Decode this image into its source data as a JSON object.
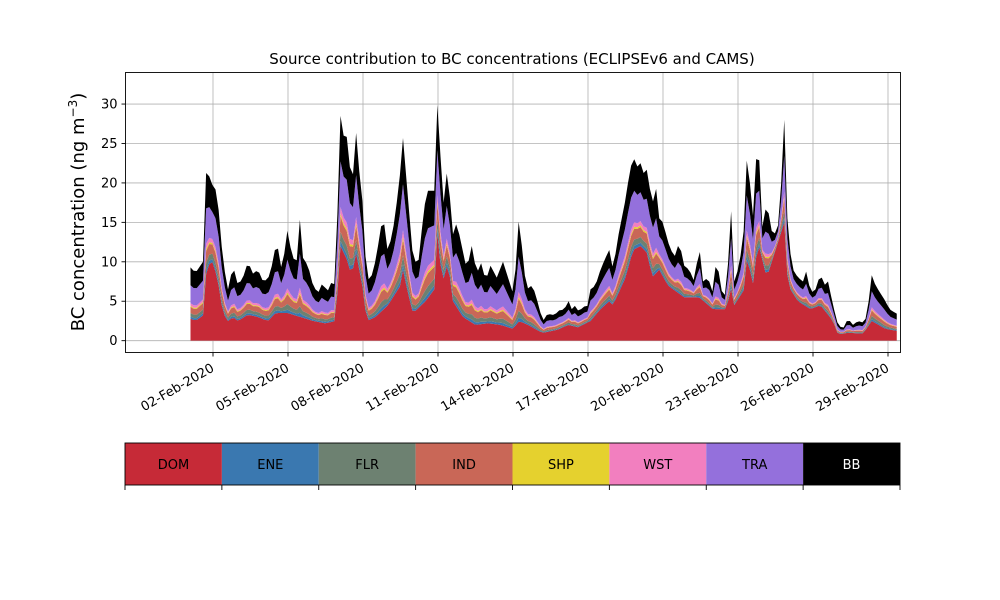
{
  "chart_data": {
    "type": "area",
    "title": "Source contribution to BC concentrations (ECLIPSEv6 and CAMS)",
    "ylabel": "BC concentration (ng m",
    "ylabel_superscript": "−3",
    "ylabel_suffix": ")",
    "ylim": [
      -1.5,
      34
    ],
    "yticks": [
      0,
      5,
      10,
      15,
      20,
      25,
      30
    ],
    "xlim_days": [
      -1.5,
      29.5
    ],
    "x_start": "01-Feb-2020",
    "x_end": "01-Mar-2020",
    "xticks": [
      {
        "day": 2,
        "label": "02-Feb-2020"
      },
      {
        "day": 5,
        "label": "05-Feb-2020"
      },
      {
        "day": 8,
        "label": "08-Feb-2020"
      },
      {
        "day": 11,
        "label": "11-Feb-2020"
      },
      {
        "day": 14,
        "label": "14-Feb-2020"
      },
      {
        "day": 17,
        "label": "17-Feb-2020"
      },
      {
        "day": 20,
        "label": "20-Feb-2020"
      },
      {
        "day": 23,
        "label": "23-Feb-2020"
      },
      {
        "day": 26,
        "label": "26-Feb-2020"
      },
      {
        "day": 29,
        "label": "29-Feb-2020"
      }
    ],
    "grid": true,
    "total_keypoints": [
      [
        1.1,
        9.3
      ],
      [
        1.3,
        8.6
      ],
      [
        1.6,
        10.0
      ],
      [
        1.75,
        23.5
      ],
      [
        1.9,
        19.5
      ],
      [
        2.05,
        20.0
      ],
      [
        2.2,
        17.5
      ],
      [
        2.4,
        10.0
      ],
      [
        2.6,
        6.5
      ],
      [
        2.8,
        9.5
      ],
      [
        3.0,
        7.0
      ],
      [
        3.2,
        8.0
      ],
      [
        3.4,
        10.0
      ],
      [
        3.6,
        8.5
      ],
      [
        3.8,
        9.0
      ],
      [
        4.0,
        7.5
      ],
      [
        4.2,
        7.8
      ],
      [
        4.4,
        10.0
      ],
      [
        4.55,
        13.0
      ],
      [
        4.7,
        9.0
      ],
      [
        4.85,
        11.0
      ],
      [
        5.0,
        14.5
      ],
      [
        5.15,
        10.5
      ],
      [
        5.35,
        10.2
      ],
      [
        5.45,
        16.3
      ],
      [
        5.6,
        10.5
      ],
      [
        5.8,
        9.5
      ],
      [
        6.0,
        7.0
      ],
      [
        6.2,
        6.0
      ],
      [
        6.4,
        7.5
      ],
      [
        6.55,
        6.0
      ],
      [
        6.75,
        7.5
      ],
      [
        6.9,
        7.0
      ],
      [
        7.0,
        19.0
      ],
      [
        7.1,
        28.5
      ],
      [
        7.25,
        25.5
      ],
      [
        7.4,
        26.0
      ],
      [
        7.55,
        18.0
      ],
      [
        7.7,
        27.3
      ],
      [
        7.85,
        21.5
      ],
      [
        8.0,
        17.0
      ],
      [
        8.15,
        7.5
      ],
      [
        8.4,
        8.5
      ],
      [
        8.6,
        12.0
      ],
      [
        8.8,
        16.0
      ],
      [
        9.0,
        11.0
      ],
      [
        9.25,
        15.0
      ],
      [
        9.45,
        20.0
      ],
      [
        9.6,
        25.7
      ],
      [
        9.8,
        18.0
      ],
      [
        10.0,
        10.5
      ],
      [
        10.2,
        9.5
      ],
      [
        10.45,
        17.0
      ],
      [
        10.6,
        19.0
      ],
      [
        10.85,
        19.0
      ],
      [
        11.0,
        32.0
      ],
      [
        11.15,
        19.0
      ],
      [
        11.25,
        17.0
      ],
      [
        11.4,
        23.3
      ],
      [
        11.55,
        13.0
      ],
      [
        11.75,
        15.0
      ],
      [
        11.95,
        12.0
      ],
      [
        12.15,
        9.0
      ],
      [
        12.35,
        12.0
      ],
      [
        12.55,
        8.5
      ],
      [
        12.75,
        10.0
      ],
      [
        12.9,
        7.5
      ],
      [
        13.1,
        9.5
      ],
      [
        13.35,
        8.0
      ],
      [
        13.6,
        10.0
      ],
      [
        13.85,
        7.5
      ],
      [
        14.0,
        6.0
      ],
      [
        14.1,
        9.0
      ],
      [
        14.25,
        16.3
      ],
      [
        14.4,
        10.0
      ],
      [
        14.55,
        6.5
      ],
      [
        14.75,
        7.0
      ],
      [
        14.9,
        6.0
      ],
      [
        15.05,
        4.0
      ],
      [
        15.2,
        2.5
      ],
      [
        15.4,
        3.5
      ],
      [
        15.55,
        3.2
      ],
      [
        15.75,
        3.5
      ],
      [
        15.9,
        4.0
      ],
      [
        16.05,
        3.8
      ],
      [
        16.2,
        5.2
      ],
      [
        16.35,
        4.0
      ],
      [
        16.5,
        4.5
      ],
      [
        16.65,
        3.5
      ],
      [
        16.8,
        4.5
      ],
      [
        16.95,
        4.0
      ],
      [
        17.1,
        6.5
      ],
      [
        17.3,
        7.0
      ],
      [
        17.5,
        9.0
      ],
      [
        17.7,
        10.5
      ],
      [
        17.85,
        11.5
      ],
      [
        18.0,
        9.0
      ],
      [
        18.25,
        14.0
      ],
      [
        18.45,
        17.0
      ],
      [
        18.6,
        20.0
      ],
      [
        18.8,
        23.5
      ],
      [
        18.95,
        22.0
      ],
      [
        19.1,
        22.5
      ],
      [
        19.25,
        21.0
      ],
      [
        19.4,
        22.0
      ],
      [
        19.55,
        16.5
      ],
      [
        19.7,
        20.0
      ],
      [
        19.85,
        15.5
      ],
      [
        20.0,
        15.0
      ],
      [
        20.2,
        12.5
      ],
      [
        20.45,
        10.5
      ],
      [
        20.65,
        12.5
      ],
      [
        20.85,
        9.5
      ],
      [
        21.05,
        9.0
      ],
      [
        21.25,
        7.5
      ],
      [
        21.45,
        12.0
      ],
      [
        21.6,
        7.5
      ],
      [
        21.8,
        8.0
      ],
      [
        22.0,
        6.0
      ],
      [
        22.15,
        11.0
      ],
      [
        22.3,
        6.5
      ],
      [
        22.55,
        5.5
      ],
      [
        22.7,
        18.2
      ],
      [
        22.85,
        7.5
      ],
      [
        23.05,
        9.5
      ],
      [
        23.25,
        14.5
      ],
      [
        23.4,
        27.0
      ],
      [
        23.55,
        13.0
      ],
      [
        23.8,
        27.3
      ],
      [
        23.95,
        14.0
      ],
      [
        24.15,
        17.5
      ],
      [
        24.4,
        13.0
      ],
      [
        24.65,
        15.0
      ],
      [
        24.85,
        28.0
      ],
      [
        25.0,
        13.0
      ],
      [
        25.2,
        9.0
      ],
      [
        25.4,
        8.0
      ],
      [
        25.6,
        7.5
      ],
      [
        25.75,
        9.0
      ],
      [
        25.9,
        6.0
      ],
      [
        26.1,
        6.5
      ],
      [
        26.3,
        8.5
      ],
      [
        26.45,
        7.0
      ],
      [
        26.6,
        7.5
      ],
      [
        26.8,
        4.5
      ],
      [
        27.0,
        2.0
      ],
      [
        27.2,
        1.5
      ],
      [
        27.4,
        2.8
      ],
      [
        27.6,
        2.0
      ],
      [
        27.8,
        2.5
      ],
      [
        28.0,
        2.3
      ],
      [
        28.15,
        3.0
      ],
      [
        28.35,
        8.3
      ],
      [
        28.5,
        7.0
      ],
      [
        28.7,
        6.0
      ],
      [
        28.9,
        5.0
      ],
      [
        29.05,
        4.0
      ],
      [
        29.3,
        3.5
      ],
      [
        29.45,
        3.3
      ]
    ],
    "total_keypoints_note_unit": "ng m−3",
    "dom_keypoints": [
      [
        1.1,
        2.8
      ],
      [
        1.3,
        2.5
      ],
      [
        1.6,
        3.2
      ],
      [
        1.75,
        9.5
      ],
      [
        2.0,
        10.0
      ],
      [
        2.2,
        7.5
      ],
      [
        2.4,
        3.5
      ],
      [
        2.6,
        2.5
      ],
      [
        2.8,
        3.0
      ],
      [
        3.0,
        2.5
      ],
      [
        3.4,
        3.3
      ],
      [
        3.8,
        3.0
      ],
      [
        4.2,
        2.5
      ],
      [
        4.5,
        3.5
      ],
      [
        5.0,
        3.5
      ],
      [
        5.5,
        3.0
      ],
      [
        6.0,
        2.5
      ],
      [
        6.5,
        2.2
      ],
      [
        6.9,
        2.5
      ],
      [
        7.1,
        12.0
      ],
      [
        7.4,
        10.0
      ],
      [
        7.55,
        8.0
      ],
      [
        7.7,
        11.5
      ],
      [
        8.0,
        6.5
      ],
      [
        8.15,
        2.5
      ],
      [
        8.5,
        3.0
      ],
      [
        9.0,
        4.5
      ],
      [
        9.5,
        7.0
      ],
      [
        9.6,
        9.0
      ],
      [
        9.8,
        6.0
      ],
      [
        10.0,
        3.5
      ],
      [
        10.5,
        5.0
      ],
      [
        10.85,
        6.5
      ],
      [
        11.0,
        15.0
      ],
      [
        11.15,
        7.0
      ],
      [
        11.4,
        10.0
      ],
      [
        11.6,
        5.0
      ],
      [
        12.0,
        3.0
      ],
      [
        12.5,
        2.0
      ],
      [
        13.0,
        2.2
      ],
      [
        13.5,
        2.0
      ],
      [
        14.0,
        1.5
      ],
      [
        14.25,
        2.5
      ],
      [
        14.6,
        2.0
      ],
      [
        15.05,
        1.2
      ],
      [
        15.2,
        1.0
      ],
      [
        15.8,
        1.4
      ],
      [
        16.2,
        2.0
      ],
      [
        16.6,
        1.7
      ],
      [
        17.1,
        2.5
      ],
      [
        17.5,
        4.0
      ],
      [
        17.85,
        5.0
      ],
      [
        18.0,
        4.5
      ],
      [
        18.5,
        8.0
      ],
      [
        18.8,
        11.5
      ],
      [
        19.1,
        12.0
      ],
      [
        19.4,
        11.0
      ],
      [
        19.55,
        8.0
      ],
      [
        19.85,
        9.0
      ],
      [
        20.2,
        7.0
      ],
      [
        20.85,
        5.5
      ],
      [
        21.45,
        5.5
      ],
      [
        22.0,
        4.0
      ],
      [
        22.55,
        4.0
      ],
      [
        22.7,
        7.0
      ],
      [
        22.85,
        4.5
      ],
      [
        23.25,
        6.5
      ],
      [
        23.4,
        12.0
      ],
      [
        23.55,
        6.0
      ],
      [
        23.8,
        12.5
      ],
      [
        24.15,
        8.0
      ],
      [
        24.85,
        15.0
      ],
      [
        25.0,
        7.0
      ],
      [
        25.4,
        5.0
      ],
      [
        25.9,
        4.0
      ],
      [
        26.3,
        4.5
      ],
      [
        26.8,
        2.5
      ],
      [
        27.0,
        0.8
      ],
      [
        27.4,
        1.0
      ],
      [
        28.0,
        0.9
      ],
      [
        28.35,
        2.5
      ],
      [
        28.9,
        1.5
      ],
      [
        29.45,
        1.2
      ]
    ],
    "fractions_of_remainder": {
      "ENE": 0.04,
      "FLR": 0.07,
      "IND": 0.12,
      "SHP": 0.02,
      "WST": 0.05,
      "TRA": 0.35,
      "BB": 0.35
    },
    "series": [
      {
        "name": "DOM",
        "color": "#c62a37"
      },
      {
        "name": "ENE",
        "color": "#3a78b0"
      },
      {
        "name": "FLR",
        "color": "#6d8171"
      },
      {
        "name": "IND",
        "color": "#c96757"
      },
      {
        "name": "SHP",
        "color": "#e5d12e"
      },
      {
        "name": "WST",
        "color": "#f27fbf"
      },
      {
        "name": "TRA",
        "color": "#9470dc"
      },
      {
        "name": "BB",
        "color": "#000000"
      }
    ],
    "legend_placement": "bottom"
  }
}
